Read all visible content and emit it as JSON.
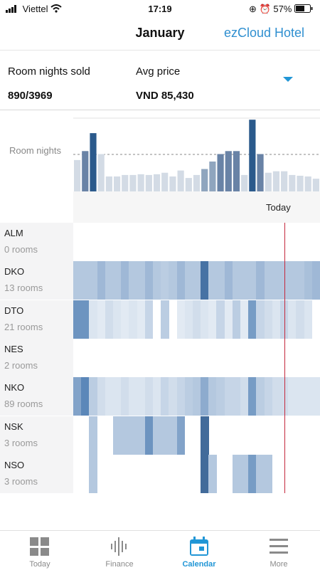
{
  "status_bar": {
    "carrier": "Viettel",
    "time": "17:19",
    "battery": "57%"
  },
  "nav": {
    "title": "January",
    "brand": "ezCloud Hotel"
  },
  "summary": {
    "room_nights_label": "Room nights sold",
    "room_nights_value": "890/3969",
    "avg_price_label": "Avg price",
    "avg_price_value": "VND 85,430"
  },
  "chart": {
    "label": "Room nights",
    "today_label": "Today"
  },
  "chart_data": {
    "type": "bar",
    "ylabel": "Room nights",
    "x": [
      1,
      2,
      3,
      4,
      5,
      6,
      7,
      8,
      9,
      10,
      11,
      12,
      13,
      14,
      15,
      16,
      17,
      18,
      19,
      20,
      21,
      22,
      23,
      24,
      25,
      26,
      27,
      28,
      29,
      30,
      31
    ],
    "values": [
      42,
      54,
      78,
      50,
      20,
      20,
      22,
      22,
      23,
      22,
      23,
      25,
      20,
      28,
      18,
      22,
      30,
      40,
      50,
      54,
      54,
      22,
      96,
      50,
      25,
      27,
      27,
      22,
      21,
      20,
      17
    ],
    "highlight_days": [
      2,
      3,
      17,
      18,
      19,
      20,
      21,
      23,
      24
    ],
    "today_day": 27
  },
  "rooms": [
    {
      "code": "ALM",
      "count": "0 rooms",
      "occupancy": []
    },
    {
      "code": "DKO",
      "count": "13 rooms",
      "occupancy": [
        0.3,
        0.3,
        0.3,
        0.4,
        0.3,
        0.3,
        0.4,
        0.3,
        0.3,
        0.4,
        0.3,
        0.25,
        0.3,
        0.4,
        0.3,
        0.3,
        0.9,
        0.3,
        0.3,
        0.4,
        0.3,
        0.3,
        0.3,
        0.4,
        0.3,
        0.3,
        0.3,
        0.3,
        0.3,
        0.35,
        0.4
      ]
    },
    {
      "code": "DTO",
      "count": "21 rooms",
      "occupancy": [
        0.65,
        0.65,
        0.1,
        0.05,
        0.15,
        0.1,
        0.05,
        0.1,
        0.05,
        0.2,
        0,
        0.25,
        0,
        0.05,
        0.1,
        0.15,
        0.1,
        0.05,
        0.2,
        0.05,
        0.25,
        0.05,
        0.6,
        0.2,
        0.15,
        0.1,
        0.2,
        0.1,
        0.15,
        0.1,
        0
      ]
    },
    {
      "code": "NES",
      "count": "2 rooms",
      "occupancy": []
    },
    {
      "code": "NKO",
      "count": "89 rooms",
      "occupancy": [
        0.55,
        0.75,
        0.25,
        0.15,
        0.1,
        0.1,
        0.15,
        0.1,
        0.1,
        0.15,
        0.1,
        0.2,
        0.15,
        0.2,
        0.25,
        0.3,
        0.5,
        0.3,
        0.25,
        0.2,
        0.2,
        0.15,
        0.6,
        0.25,
        0.2,
        0.15,
        0.15,
        0.1,
        0.1,
        0.1,
        0.1
      ]
    },
    {
      "code": "NSK",
      "count": "3 rooms",
      "occupancy": [
        0,
        0,
        0.3,
        0,
        0,
        0.3,
        0.3,
        0.3,
        0.3,
        0.65,
        0.3,
        0.3,
        0.3,
        0.55,
        0,
        0,
        0.95,
        0,
        0,
        0,
        0,
        0,
        0,
        0,
        0,
        0,
        0,
        0,
        0,
        0,
        0
      ]
    },
    {
      "code": "NSO",
      "count": "3 rooms",
      "occupancy": [
        0,
        0,
        0.3,
        0,
        0,
        0,
        0,
        0,
        0,
        0,
        0,
        0,
        0,
        0,
        0,
        0,
        0.95,
        0.3,
        0,
        0,
        0.3,
        0.3,
        0.6,
        0.3,
        0.3,
        0,
        0,
        0,
        0,
        0,
        0
      ]
    }
  ],
  "tabs": [
    {
      "label": "Today",
      "icon": "dashboard-icon"
    },
    {
      "label": "Finance",
      "icon": "waveform-icon"
    },
    {
      "label": "Calendar",
      "icon": "calendar-icon",
      "active": true
    },
    {
      "label": "More",
      "icon": "menu-icon"
    }
  ],
  "colors": {
    "accent": "#2196d6",
    "today_line": "#c5283d",
    "bar_dark": "#2b5a8c",
    "bar_light": "#d3dbe5"
  }
}
